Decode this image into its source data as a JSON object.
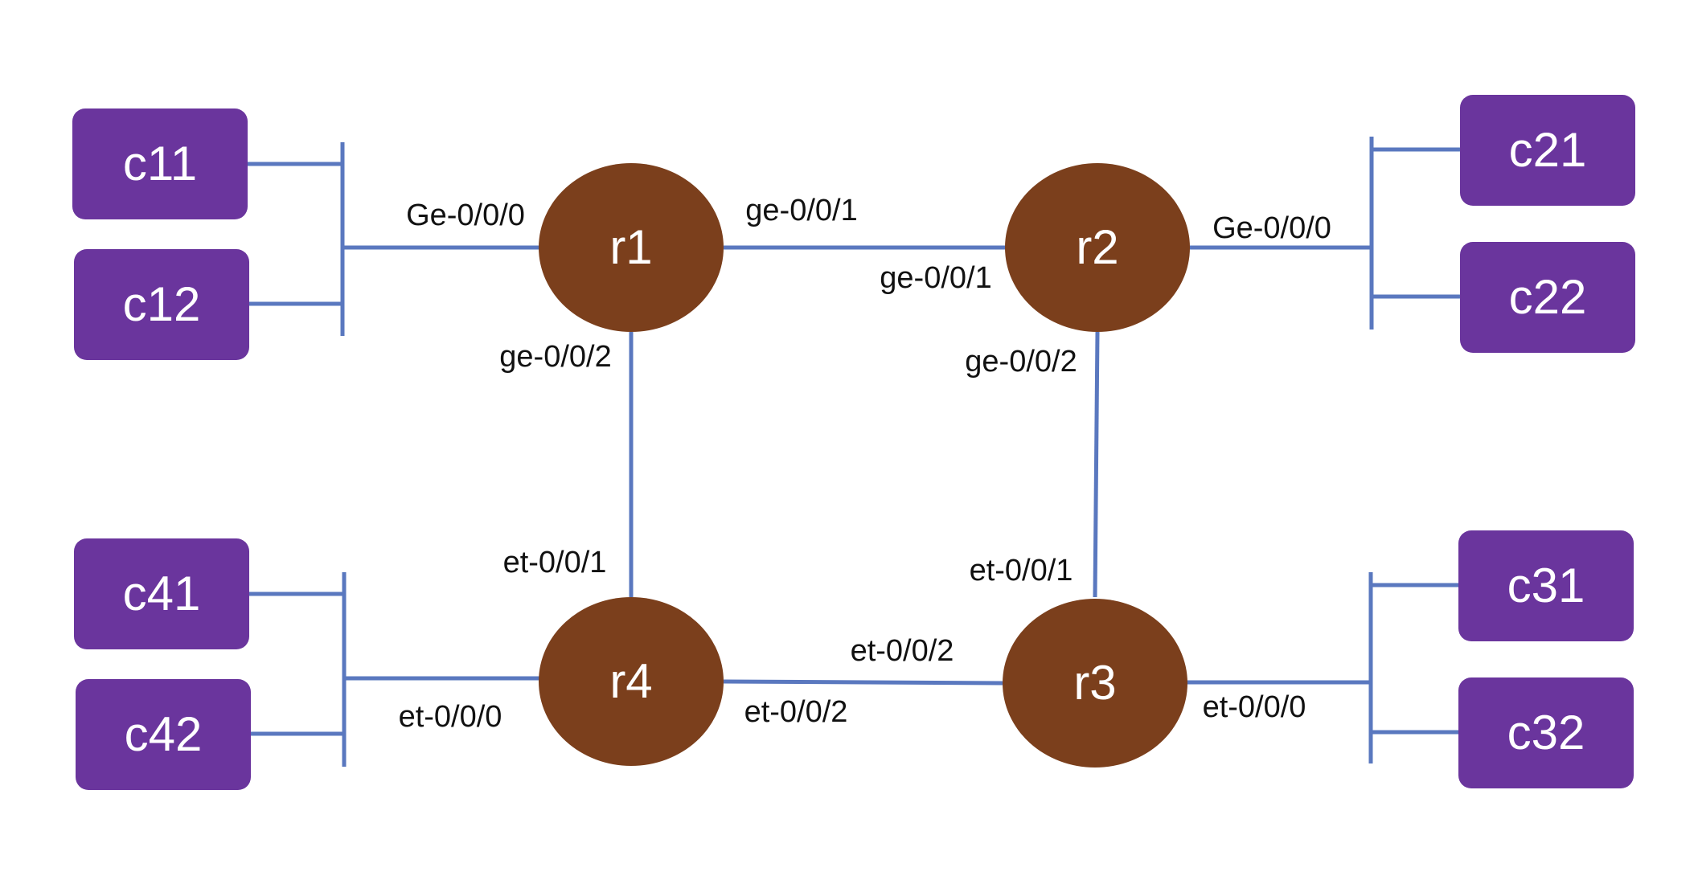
{
  "colors": {
    "link": "#5a78bf",
    "router": "#7b3f1c",
    "client": "#6a359d",
    "node_text": "#ffffff",
    "port_text": "#111111"
  },
  "routers": {
    "r1": "r1",
    "r2": "r2",
    "r3": "r3",
    "r4": "r4"
  },
  "clients": {
    "c11": "c11",
    "c12": "c12",
    "c21": "c21",
    "c22": "c22",
    "c31": "c31",
    "c32": "c32",
    "c41": "c41",
    "c42": "c42"
  },
  "ports": {
    "r1_lan": "Ge-0/0/0",
    "r1_to_r2": "ge-0/0/1",
    "r1_to_r4": "ge-0/0/2",
    "r2_to_r1": "ge-0/0/1",
    "r2_lan": "Ge-0/0/0",
    "r2_to_r3": "ge-0/0/2",
    "r3_to_r2": "et-0/0/1",
    "r3_to_r4": "et-0/0/2",
    "r3_lan": "et-0/0/0",
    "r4_to_r1": "et-0/0/1",
    "r4_lan": "et-0/0/0",
    "r4_to_r3": "et-0/0/2"
  }
}
